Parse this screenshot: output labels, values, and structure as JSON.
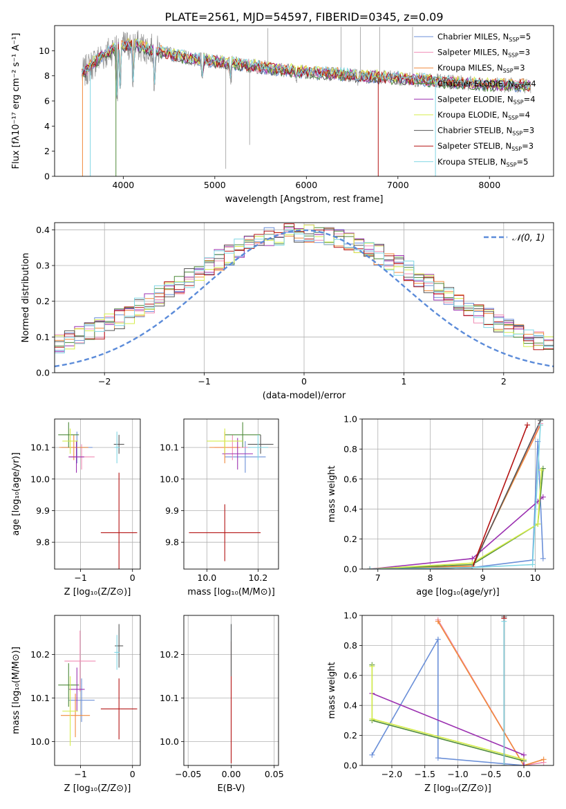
{
  "figure": {
    "title": "PLATE=2561, MJD=54597, FIBERID=0345, z=0.09"
  },
  "models": [
    {
      "name": "Chabrier MILES",
      "n": "5",
      "color": "#6a8fd8"
    },
    {
      "name": "Salpeter MILES",
      "n": "3",
      "color": "#f08cb4"
    },
    {
      "name": "Kroupa MILES",
      "n": "3",
      "color": "#f08a3c"
    },
    {
      "name": "Chabrier ELODIE",
      "n": "4",
      "color": "#4e8a3a"
    },
    {
      "name": "Salpeter ELODIE",
      "n": "4",
      "color": "#9b30b0"
    },
    {
      "name": "Kroupa ELODIE",
      "n": "4",
      "color": "#d4ec4a"
    },
    {
      "name": "Chabrier STELIB",
      "n": "3",
      "color": "#555555"
    },
    {
      "name": "Salpeter STELIB",
      "n": "3",
      "color": "#b31212"
    },
    {
      "name": "Kroupa STELIB",
      "n": "5",
      "color": "#7fd6e4"
    }
  ],
  "chart_data": [
    {
      "id": "spectrum",
      "type": "line",
      "xlabel": "wavelength [Angstrom, rest frame]",
      "ylabel": "Flux [fλ10⁻¹⁷ erg cm⁻² s⁻¹ A⁻¹]",
      "xlim": [
        3250,
        8700
      ],
      "ylim": [
        0,
        12
      ],
      "xticks": [
        "4000",
        "5000",
        "6000",
        "7000",
        "8000"
      ],
      "yticks": [
        "0",
        "2",
        "4",
        "6",
        "8",
        "10"
      ],
      "grid": false,
      "legend": "upper right",
      "continuum": [
        [
          3550,
          8.1
        ],
        [
          3700,
          9.2
        ],
        [
          3900,
          10.2
        ],
        [
          4100,
          10.5
        ],
        [
          4400,
          9.9
        ],
        [
          4800,
          9.3
        ],
        [
          5200,
          9.0
        ],
        [
          5600,
          8.6
        ],
        [
          6000,
          8.3
        ],
        [
          6400,
          8.1
        ],
        [
          6800,
          7.9
        ],
        [
          7200,
          7.7
        ],
        [
          7600,
          7.5
        ],
        [
          8000,
          7.3
        ],
        [
          8450,
          7.2
        ]
      ],
      "absorption_lines": [
        [
          3934,
          5.8
        ],
        [
          3969,
          6.5
        ],
        [
          4102,
          7.0
        ],
        [
          4340,
          6.8
        ],
        [
          4861,
          7.4
        ],
        [
          5175,
          7.3
        ],
        [
          5890,
          7.4
        ],
        [
          6563,
          7.2
        ]
      ],
      "data_spikes": [
        [
          5120,
          0.6
        ],
        [
          5380,
          2.5
        ],
        [
          5580,
          11.8
        ],
        [
          6380,
          11.9
        ],
        [
          6590,
          11.9
        ],
        [
          6800,
          11.9
        ],
        [
          7160,
          11.9
        ]
      ]
    },
    {
      "id": "residuals",
      "type": "bar",
      "xlabel": "(data-model)/error",
      "ylabel": "Normed distribution",
      "xlim": [
        -2.5,
        2.5
      ],
      "ylim": [
        0,
        0.42
      ],
      "xticks": [
        "−2",
        "−1",
        "0",
        "1",
        "2"
      ],
      "yticks": [
        "0.0",
        "0.1",
        "0.2",
        "0.3",
        "0.4"
      ],
      "grid": true,
      "legend": "upper right",
      "reference": "𝒩(0, 1)",
      "bins": 50
    },
    {
      "id": "age_vs_Z",
      "type": "scatter",
      "xlabel": "Z [log₁₀(Z/Z⊙)]",
      "ylabel": "age  [log₁₀(age/yr)]",
      "xlim": [
        -1.5,
        0.15
      ],
      "ylim": [
        9.715,
        10.19
      ],
      "xticks": [
        "−1",
        "0"
      ],
      "yticks": [
        "9.8",
        "9.9",
        "10.0",
        "10.1"
      ],
      "grid": true,
      "points": [
        {
          "x": -1.07,
          "y": 10.1,
          "xerr": 0.3,
          "yerr": 0.05
        },
        {
          "x": -0.98,
          "y": 10.07,
          "xerr": 0.25,
          "yerr": 0.04
        },
        {
          "x": -1.13,
          "y": 10.1,
          "xerr": 0.28,
          "yerr": 0.04
        },
        {
          "x": -1.23,
          "y": 10.14,
          "xerr": 0.2,
          "yerr": 0.04
        },
        {
          "x": -1.08,
          "y": 10.07,
          "xerr": 0.15,
          "yerr": 0.05
        },
        {
          "x": -1.2,
          "y": 10.12,
          "xerr": 0.15,
          "yerr": 0.04
        },
        {
          "x": -0.26,
          "y": 10.11,
          "xerr": 0.1,
          "yerr": 0.03
        },
        {
          "x": -0.26,
          "y": 9.83,
          "xerr": 0.35,
          "yerr": 0.19
        },
        {
          "x": -0.3,
          "y": 10.1,
          "xerr": 0.05,
          "yerr": 0.05
        }
      ]
    },
    {
      "id": "age_vs_mass",
      "type": "scatter",
      "xlabel": "mass [log₁₀(M/M⊙)]",
      "ylabel": "",
      "xlim": [
        9.91,
        10.28
      ],
      "ylim": [
        9.715,
        10.19
      ],
      "xticks": [
        "10.0",
        "10.2"
      ],
      "yticks": [
        "9.8",
        "9.9",
        "10.0",
        "10.1"
      ],
      "grid": true,
      "points": [
        {
          "x": 10.15,
          "y": 10.07,
          "xerr": 0.08,
          "yerr": 0.05
        },
        {
          "x": 10.1,
          "y": 10.1,
          "xerr": 0.07,
          "yerr": 0.04
        },
        {
          "x": 10.07,
          "y": 10.1,
          "xerr": 0.06,
          "yerr": 0.05
        },
        {
          "x": 10.14,
          "y": 10.14,
          "xerr": 0.07,
          "yerr": 0.04
        },
        {
          "x": 10.12,
          "y": 10.08,
          "xerr": 0.06,
          "yerr": 0.05
        },
        {
          "x": 10.07,
          "y": 10.12,
          "xerr": 0.07,
          "yerr": 0.04
        },
        {
          "x": 10.21,
          "y": 10.11,
          "xerr": 0.05,
          "yerr": 0.03
        },
        {
          "x": 10.07,
          "y": 9.83,
          "xerr": 0.14,
          "yerr": 0.09
        },
        {
          "x": 10.2,
          "y": 10.1,
          "xerr": 0.04,
          "yerr": 0.04
        }
      ]
    },
    {
      "id": "weight_vs_age",
      "type": "line",
      "xlabel": "age  [log₁₀(age/yr)]",
      "ylabel": "mass weight",
      "xlim": [
        6.7,
        10.35
      ],
      "ylim": [
        0,
        1
      ],
      "xticks": [
        "7",
        "8",
        "9",
        "10"
      ],
      "yticks": [
        "0.0",
        "0.2",
        "0.4",
        "0.6",
        "0.8",
        "1.0"
      ],
      "grid": true,
      "series": [
        {
          "model": 0,
          "points": [
            [
              6.85,
              0.0
            ],
            [
              8.8,
              0.01
            ],
            [
              9.95,
              0.06
            ],
            [
              10.05,
              0.85
            ],
            [
              10.15,
              0.07
            ]
          ]
        },
        {
          "model": 1,
          "points": [
            [
              6.85,
              0.0
            ],
            [
              8.8,
              0.02
            ],
            [
              10.1,
              0.97
            ]
          ]
        },
        {
          "model": 2,
          "points": [
            [
              6.85,
              0.0
            ],
            [
              8.8,
              0.02
            ],
            [
              10.1,
              0.96
            ]
          ]
        },
        {
          "model": 3,
          "points": [
            [
              6.85,
              0.0
            ],
            [
              8.8,
              0.03
            ],
            [
              10.05,
              0.3
            ],
            [
              10.15,
              0.67
            ]
          ]
        },
        {
          "model": 4,
          "points": [
            [
              6.85,
              0.0
            ],
            [
              8.8,
              0.07
            ],
            [
              10.05,
              0.45
            ],
            [
              10.15,
              0.48
            ]
          ]
        },
        {
          "model": 5,
          "points": [
            [
              6.85,
              0.0
            ],
            [
              8.8,
              0.04
            ],
            [
              10.05,
              0.3
            ],
            [
              10.12,
              0.66
            ]
          ]
        },
        {
          "model": 6,
          "points": [
            [
              6.85,
              0.0
            ],
            [
              8.8,
              0.01
            ],
            [
              10.1,
              0.99
            ]
          ]
        },
        {
          "model": 7,
          "points": [
            [
              6.85,
              0.0
            ],
            [
              8.8,
              0.01
            ],
            [
              9.85,
              0.96
            ]
          ]
        },
        {
          "model": 8,
          "points": [
            [
              6.85,
              0.0
            ],
            [
              8.8,
              0.01
            ],
            [
              9.95,
              0.03
            ],
            [
              10.1,
              0.96
            ]
          ]
        }
      ]
    },
    {
      "id": "mass_vs_Z",
      "type": "scatter",
      "xlabel": "Z [log₁₀(Z/Z⊙)]",
      "ylabel": "mass [log₁₀(M/M⊙)]",
      "xlim": [
        -1.5,
        0.15
      ],
      "ylim": [
        9.945,
        10.29
      ],
      "xticks": [
        "−1",
        "0"
      ],
      "yticks": [
        "10.0",
        "10.1",
        "10.2"
      ],
      "grid": true,
      "points": [
        {
          "x": -0.98,
          "y": 10.095,
          "xerr": 0.25,
          "yerr": 0.05
        },
        {
          "x": -1.01,
          "y": 10.185,
          "xerr": 0.3,
          "yerr": 0.07
        },
        {
          "x": -1.1,
          "y": 10.06,
          "xerr": 0.28,
          "yerr": 0.05
        },
        {
          "x": -1.23,
          "y": 10.13,
          "xerr": 0.2,
          "yerr": 0.05
        },
        {
          "x": -1.07,
          "y": 10.12,
          "xerr": 0.15,
          "yerr": 0.05
        },
        {
          "x": -1.2,
          "y": 10.07,
          "xerr": 0.15,
          "yerr": 0.08
        },
        {
          "x": -0.26,
          "y": 10.22,
          "xerr": 0.08,
          "yerr": 0.05
        },
        {
          "x": -0.26,
          "y": 10.075,
          "xerr": 0.35,
          "yerr": 0.07
        },
        {
          "x": -0.3,
          "y": 10.205,
          "xerr": 0.05,
          "yerr": 0.04
        }
      ]
    },
    {
      "id": "mass_vs_ebv",
      "type": "scatter",
      "xlabel": "E(B-V)",
      "ylabel": "",
      "xlim": [
        -0.055,
        0.055
      ],
      "ylim": [
        9.945,
        10.29
      ],
      "xticks": [
        "−0.05",
        "0.00",
        "0.05"
      ],
      "yticks": [
        "10.0",
        "10.1",
        "10.2"
      ],
      "grid": true,
      "points": [
        {
          "x": 0.0,
          "y": 10.21,
          "xerr": 0.0,
          "yerr": 0.06
        },
        {
          "x": 0.0,
          "y": 10.09,
          "xerr": 0.0,
          "yerr": 0.14
        }
      ]
    },
    {
      "id": "weight_vs_Z",
      "type": "line",
      "xlabel": "Z [log₁₀(Z/Z⊙)]",
      "ylabel": "mass weight",
      "xlim": [
        -2.45,
        0.45
      ],
      "ylim": [
        0,
        1
      ],
      "xticks": [
        "−2.0",
        "−1.5",
        "−1.0",
        "−0.5",
        "0.0"
      ],
      "yticks": [
        "0.0",
        "0.2",
        "0.4",
        "0.6",
        "0.8",
        "1.0"
      ],
      "grid": true,
      "series": [
        {
          "model": 0,
          "points": [
            [
              -2.3,
              0.07
            ],
            [
              -1.3,
              0.84
            ],
            [
              -1.3,
              0.05
            ],
            [
              0.0,
              0.0
            ]
          ]
        },
        {
          "model": 1,
          "points": [
            [
              -1.3,
              0.97
            ],
            [
              0.0,
              0.0
            ],
            [
              0.3,
              0.02
            ]
          ]
        },
        {
          "model": 2,
          "points": [
            [
              -1.3,
              0.96
            ],
            [
              0.0,
              0.0
            ],
            [
              0.3,
              0.04
            ]
          ]
        },
        {
          "model": 3,
          "points": [
            [
              -2.3,
              0.67
            ],
            [
              -2.3,
              0.3
            ],
            [
              0.0,
              0.03
            ]
          ]
        },
        {
          "model": 4,
          "points": [
            [
              -2.3,
              0.48
            ],
            [
              0.0,
              0.07
            ],
            [
              0.0,
              0.0
            ]
          ]
        },
        {
          "model": 5,
          "points": [
            [
              -2.3,
              0.66
            ],
            [
              -2.3,
              0.31
            ],
            [
              0.0,
              0.04
            ]
          ]
        },
        {
          "model": 6,
          "points": [
            [
              -0.3,
              0.99
            ],
            [
              -0.3,
              0.0
            ]
          ]
        },
        {
          "model": 7,
          "points": [
            [
              -0.3,
              0.98
            ],
            [
              -0.3,
              0.0
            ]
          ]
        },
        {
          "model": 8,
          "points": [
            [
              -0.3,
              0.96
            ],
            [
              -0.3,
              0.0
            ]
          ]
        }
      ]
    }
  ]
}
